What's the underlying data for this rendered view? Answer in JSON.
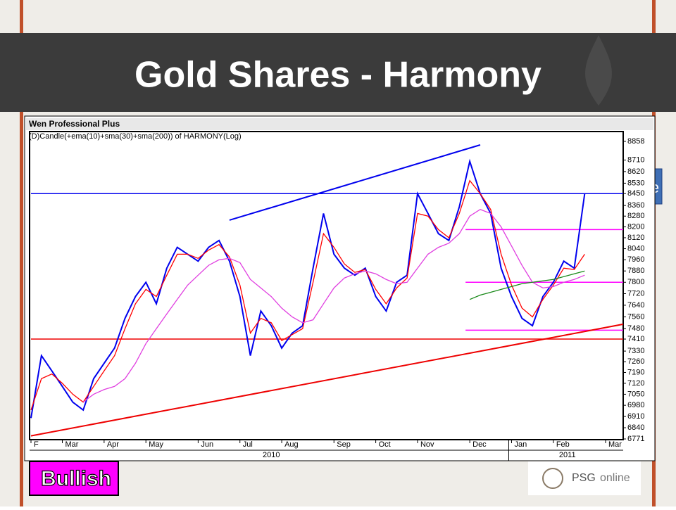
{
  "title": "Gold Shares - Harmony",
  "side_fragment": "e",
  "badge": "Bullish",
  "logo": {
    "brand": "PSG",
    "suffix": "online"
  },
  "chart_data": {
    "type": "line",
    "source": "Wen Professional Plus",
    "subtitle": "(D)Candle(+ema(10)+sma(30)+sma(200)) of HARMONY(Log)",
    "log_scale": true,
    "categories": [
      "F",
      null,
      null,
      "Mar",
      null,
      null,
      null,
      "Apr",
      null,
      null,
      null,
      "May",
      null,
      null,
      null,
      null,
      "Jun",
      null,
      null,
      null,
      "Jul",
      null,
      null,
      null,
      "Aug",
      null,
      null,
      null,
      null,
      "Sep",
      null,
      null,
      null,
      "Oct",
      null,
      null,
      null,
      "Nov",
      null,
      null,
      null,
      null,
      "Dec",
      null,
      null,
      null,
      "Jan",
      null,
      null,
      null,
      "Feb",
      null,
      null,
      null,
      null,
      "Mar"
    ],
    "years": [
      "2010",
      "2011"
    ],
    "series": [
      {
        "name": "HARMONY",
        "color": "#0000ee",
        "values": [
          6900,
          7300,
          7200,
          7100,
          7000,
          6950,
          7150,
          7250,
          7350,
          7550,
          7700,
          7800,
          7650,
          7900,
          8050,
          8000,
          7950,
          8050,
          8100,
          7950,
          7700,
          7300,
          7600,
          7500,
          7350,
          7450,
          7500,
          7900,
          8300,
          8000,
          7900,
          7850,
          7900,
          7700,
          7600,
          7800,
          7850,
          8450,
          8300,
          8150,
          8100,
          8350,
          8700,
          8450,
          8300,
          7900,
          7700,
          7550,
          7500,
          7700,
          7800,
          7950,
          7900,
          8450,
          null,
          null
        ]
      },
      {
        "name": "ema(10)",
        "color": "#ff0000",
        "values": [
          6950,
          7150,
          7180,
          7120,
          7050,
          7000,
          7100,
          7200,
          7300,
          7480,
          7650,
          7750,
          7700,
          7850,
          8000,
          8000,
          7970,
          8030,
          8070,
          7980,
          7780,
          7450,
          7550,
          7520,
          7400,
          7440,
          7480,
          7800,
          8150,
          8050,
          7930,
          7870,
          7890,
          7750,
          7650,
          7760,
          7830,
          8300,
          8280,
          8180,
          8120,
          8300,
          8550,
          8450,
          8330,
          8000,
          7780,
          7620,
          7560,
          7680,
          7780,
          7900,
          7890,
          8000,
          null,
          null
        ]
      },
      {
        "name": "sma(30)",
        "color": "#e040e0",
        "values": [
          null,
          null,
          null,
          null,
          null,
          7000,
          7050,
          7080,
          7100,
          7150,
          7250,
          7380,
          7480,
          7580,
          7680,
          7780,
          7850,
          7920,
          7960,
          7970,
          7940,
          7820,
          7760,
          7700,
          7620,
          7560,
          7520,
          7540,
          7650,
          7760,
          7830,
          7860,
          7880,
          7860,
          7820,
          7790,
          7800,
          7900,
          8000,
          8050,
          8080,
          8150,
          8280,
          8330,
          8300,
          8200,
          8060,
          7920,
          7800,
          7760,
          7770,
          7800,
          7820,
          7850,
          null,
          null
        ]
      },
      {
        "name": "sma(200)",
        "color": "#1a8a1a",
        "values": [
          null,
          null,
          null,
          null,
          null,
          null,
          null,
          null,
          null,
          null,
          null,
          null,
          null,
          null,
          null,
          null,
          null,
          null,
          null,
          null,
          null,
          null,
          null,
          null,
          null,
          null,
          null,
          null,
          null,
          null,
          null,
          null,
          null,
          null,
          null,
          null,
          null,
          null,
          null,
          null,
          null,
          null,
          7680,
          7710,
          7730,
          7750,
          7770,
          7790,
          7800,
          7810,
          7820,
          7840,
          7860,
          7880,
          null,
          null
        ]
      }
    ],
    "trend_lines": [
      {
        "color": "#0000ee",
        "start": 8250,
        "end": 8830
      },
      {
        "color": "#ee0000",
        "start": 6790,
        "end": 7510
      }
    ],
    "levels": [
      {
        "value": 8450,
        "color": "#0000ee",
        "span": "full"
      },
      {
        "value": 7410,
        "color": "#ee0000",
        "span": "full"
      },
      {
        "value": 8180,
        "color": "#ff00ff",
        "span": "recent"
      },
      {
        "value": 7800,
        "color": "#ff00ff",
        "span": "recent"
      },
      {
        "value": 7470,
        "color": "#ff00ff",
        "span": "recent"
      }
    ],
    "ylim": [
      6771,
      8858
    ],
    "yticks": [
      8858,
      8710,
      8620,
      8530,
      8450,
      8360,
      8280,
      8200,
      8120,
      8040,
      7960,
      7880,
      7800,
      7720,
      7640,
      7560,
      7480,
      7410,
      7330,
      7260,
      7190,
      7120,
      7050,
      6980,
      6910,
      6840,
      6771
    ]
  }
}
